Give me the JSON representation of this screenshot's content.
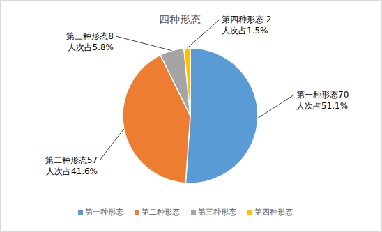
{
  "chart_data": {
    "type": "pie",
    "title": "四种形态",
    "categories": [
      "第一种形态",
      "第二种形态",
      "第三种形态",
      "第四种形态"
    ],
    "values": [
      51.1,
      41.6,
      5.8,
      1.5
    ],
    "value_labels": [
      "第一种形态70\n人次占51.1%",
      "第二种形态57\n人次占41.6%",
      "第三种形态8\n人次占5.8%",
      "第四种形态 2\n人次占1.5%"
    ],
    "colors": [
      "#5b9bd5",
      "#ed7d31",
      "#a5a5a5",
      "#ffc000"
    ],
    "legend": "bottom"
  }
}
